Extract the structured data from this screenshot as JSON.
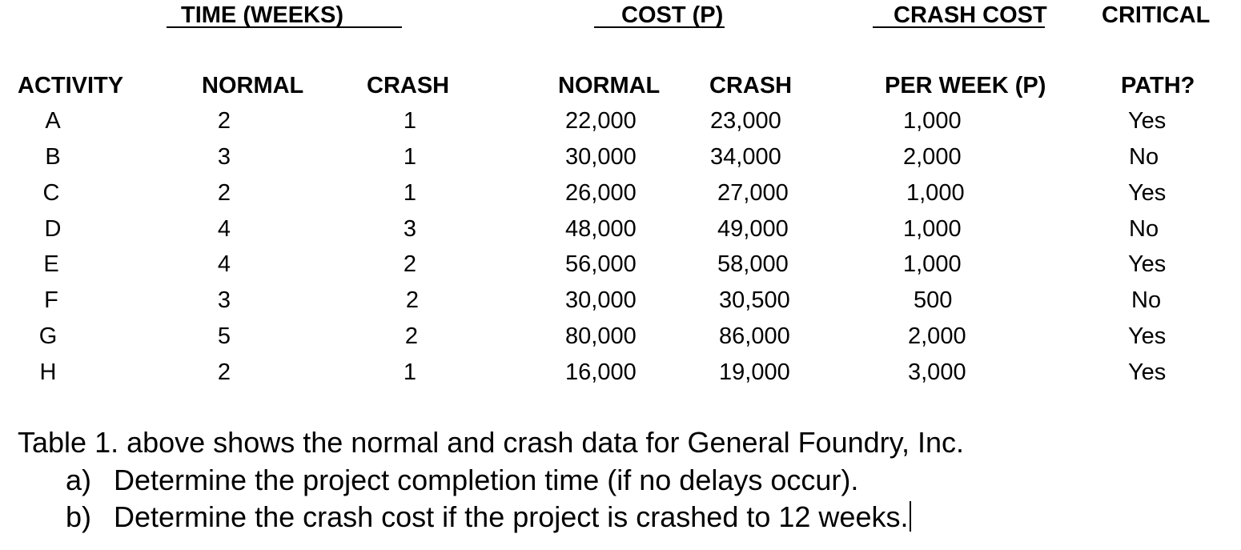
{
  "headers": {
    "group_time": "TIME (WEEKS)",
    "group_cost": "COST (P)",
    "group_crash_cost": "CRASH COST",
    "group_critical": "CRITICAL",
    "activity": "ACTIVITY",
    "time_normal": "NORMAL",
    "time_crash": "CRASH",
    "cost_normal": "NORMAL",
    "cost_crash": "CRASH",
    "per_week": "PER WEEK (P)",
    "path": "PATH?"
  },
  "rows": [
    {
      "activity": "A",
      "time_normal": "2",
      "time_crash": "1",
      "cost_normal": "22,000",
      "cost_crash": "23,000",
      "per_week": "1,000",
      "critical": "Yes"
    },
    {
      "activity": "B",
      "time_normal": "3",
      "time_crash": "1",
      "cost_normal": "30,000",
      "cost_crash": "34,000",
      "per_week": "2,000",
      "critical": "No"
    },
    {
      "activity": "C",
      "time_normal": "2",
      "time_crash": "1",
      "cost_normal": "26,000",
      "cost_crash": "27,000",
      "per_week": "1,000",
      "critical": "Yes"
    },
    {
      "activity": "D",
      "time_normal": "4",
      "time_crash": "3",
      "cost_normal": "48,000",
      "cost_crash": "49,000",
      "per_week": "1,000",
      "critical": "No"
    },
    {
      "activity": "E",
      "time_normal": "4",
      "time_crash": "2",
      "cost_normal": "56,000",
      "cost_crash": "58,000",
      "per_week": "1,000",
      "critical": "Yes"
    },
    {
      "activity": "F",
      "time_normal": "3",
      "time_crash": "2",
      "cost_normal": "30,000",
      "cost_crash": "30,500",
      "per_week": "500",
      "critical": "No"
    },
    {
      "activity": "G",
      "time_normal": "5",
      "time_crash": "2",
      "cost_normal": "80,000",
      "cost_crash": "86,000",
      "per_week": "2,000",
      "critical": "Yes"
    },
    {
      "activity": "H",
      "time_normal": "2",
      "time_crash": "1",
      "cost_normal": "16,000",
      "cost_crash": "19,000",
      "per_week": "3,000",
      "critical": "Yes"
    }
  ],
  "text": {
    "intro": "Table 1. above shows the normal and crash data for General Foundry, Inc.",
    "item_a_marker": "a)",
    "item_a": "Determine the project completion time (if no delays occur).",
    "item_b_marker": "b)",
    "item_b": "Determine the crash cost if the project is crashed to 12 weeks."
  }
}
